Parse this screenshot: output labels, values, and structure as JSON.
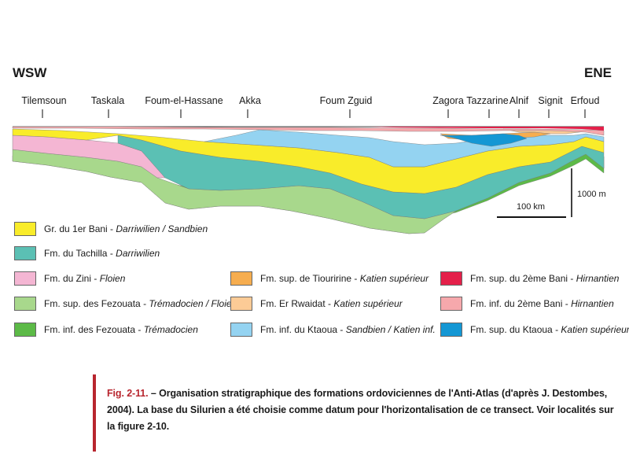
{
  "directions": {
    "west": "WSW",
    "east": "ENE"
  },
  "localities": [
    "Tilemsoun",
    "Taskala",
    "Foum-el-Hassane",
    "Akka",
    "Foum Zguid",
    "Zagora",
    "Tazzarine",
    "Alnif",
    "Signit",
    "Erfoud"
  ],
  "scale": {
    "horizontal": "100 km",
    "vertical": "1000 m"
  },
  "colors": {
    "bani1": "#f9ec2a",
    "tachilla": "#5bc0b4",
    "zini": "#f4b6d3",
    "fezouata_sup": "#a8d88c",
    "fezouata_inf": "#5cba47",
    "tiouririne": "#f6ad4f",
    "er_rwaidat": "#fccb96",
    "ktaoua_inf": "#94d3f1",
    "bani2_sup": "#e4204a",
    "bani2_inf": "#f6a8ac",
    "ktaoua_sup": "#1497d4",
    "caption_accent": "#b8252e"
  },
  "legend": [
    {
      "key": "bani1",
      "name": "Gr. du 1er Bani",
      "sep": " - ",
      "age": "Darriwilien / Sandbien"
    },
    {
      "key": "tachilla",
      "name": "Fm. du Tachilla",
      "sep": " - ",
      "age": "Darriwilien"
    },
    {
      "key": "zini",
      "name": "Fm. du Zini",
      "sep": " - ",
      "age": "Floien"
    },
    {
      "key": "fezouata_sup",
      "name": "Fm. sup. des Fezouata",
      "sep": " - ",
      "age": "Trémadocien / Floien"
    },
    {
      "key": "fezouata_inf",
      "name": "Fm. inf. des Fezouata",
      "sep": " - ",
      "age": "Trémadocien"
    },
    {
      "key": "tiouririne",
      "name": "Fm. sup. de Tiouririne",
      "sep": " - ",
      "age": "Katien supérieur"
    },
    {
      "key": "er_rwaidat",
      "name": "Fm. Er Rwaidat",
      "sep": " - ",
      "age": "Katien supérieur"
    },
    {
      "key": "ktaoua_inf",
      "name": "Fm. inf. du Ktaoua",
      "sep": " - ",
      "age": "Sandbien / Katien inf."
    },
    {
      "key": "bani2_sup",
      "name": "Fm. sup. du 2ème Bani",
      "sep": " - ",
      "age": "Hirnantien"
    },
    {
      "key": "bani2_inf",
      "name": "Fm. inf. du 2ème Bani",
      "sep": " - ",
      "age": "Hirnantien"
    },
    {
      "key": "ktaoua_sup",
      "name": "Fm. sup. du Ktaoua",
      "sep": " - ",
      "age": "Katien supérieur"
    }
  ],
  "caption": {
    "fig": "Fig. 2-11.",
    "text": " – Organisation stratigraphique des formations ordoviciennes de l'Anti-Atlas (d'après J. Destombes, 2004). La base du Silurien a été choisie comme datum pour l'horizontalisation de ce transect. Voir localités sur la figure 2-10."
  }
}
